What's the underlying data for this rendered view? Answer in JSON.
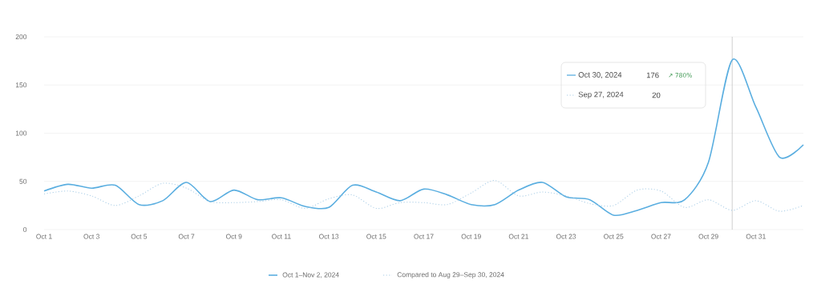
{
  "chart_data": {
    "type": "line",
    "x": [
      "2024-10-01",
      "2024-10-02",
      "2024-10-03",
      "2024-10-04",
      "2024-10-05",
      "2024-10-06",
      "2024-10-07",
      "2024-10-08",
      "2024-10-09",
      "2024-10-10",
      "2024-10-11",
      "2024-10-12",
      "2024-10-13",
      "2024-10-14",
      "2024-10-15",
      "2024-10-16",
      "2024-10-17",
      "2024-10-18",
      "2024-10-19",
      "2024-10-20",
      "2024-10-21",
      "2024-10-22",
      "2024-10-23",
      "2024-10-24",
      "2024-10-25",
      "2024-10-26",
      "2024-10-27",
      "2024-10-28",
      "2024-10-29",
      "2024-10-30",
      "2024-10-31",
      "2024-11-01",
      "2024-11-02"
    ],
    "series": [
      {
        "name": "Oct 1–Nov 2, 2024",
        "color": "#5aaee0",
        "line_style": "solid",
        "values": [
          40,
          47,
          43,
          46,
          26,
          30,
          49,
          29,
          41,
          31,
          33,
          24,
          23,
          46,
          39,
          30,
          42,
          36,
          26,
          26,
          41,
          49,
          34,
          31,
          15,
          20,
          28,
          31,
          70,
          176,
          127,
          75,
          88
        ]
      },
      {
        "name": "Compared to Aug 29–Sep 30, 2024",
        "color": "#a9cde6",
        "line_style": "dotted",
        "values": [
          37,
          40,
          35,
          25,
          35,
          48,
          43,
          29,
          28,
          29,
          31,
          22,
          32,
          36,
          22,
          28,
          28,
          26,
          38,
          51,
          35,
          39,
          35,
          27,
          25,
          41,
          40,
          23,
          31,
          20,
          30,
          19,
          25
        ]
      }
    ],
    "xlim": [
      "2024-10-01",
      "2024-11-02"
    ],
    "xticks": [
      {
        "value": "2024-10-01",
        "label": "Oct 1"
      },
      {
        "value": "2024-10-03",
        "label": "Oct 3"
      },
      {
        "value": "2024-10-05",
        "label": "Oct 5"
      },
      {
        "value": "2024-10-07",
        "label": "Oct 7"
      },
      {
        "value": "2024-10-09",
        "label": "Oct 9"
      },
      {
        "value": "2024-10-11",
        "label": "Oct 11"
      },
      {
        "value": "2024-10-13",
        "label": "Oct 13"
      },
      {
        "value": "2024-10-15",
        "label": "Oct 15"
      },
      {
        "value": "2024-10-17",
        "label": "Oct 17"
      },
      {
        "value": "2024-10-19",
        "label": "Oct 19"
      },
      {
        "value": "2024-10-21",
        "label": "Oct 21"
      },
      {
        "value": "2024-10-23",
        "label": "Oct 23"
      },
      {
        "value": "2024-10-25",
        "label": "Oct 25"
      },
      {
        "value": "2024-10-27",
        "label": "Oct 27"
      },
      {
        "value": "2024-10-29",
        "label": "Oct 29"
      },
      {
        "value": "2024-10-31",
        "label": "Oct 31"
      }
    ],
    "ylim": [
      0,
      200
    ],
    "yticks": [
      0,
      50,
      100,
      150,
      200
    ],
    "grid": "y",
    "legend": "bottom",
    "ref_lines": [
      {
        "axis": "x",
        "value": "2024-10-30",
        "color": "#b0b0b0"
      }
    ],
    "annotations": [
      "Oct 30, 2024",
      "176",
      "↗ 780%",
      "Sep 27, 2024",
      "20"
    ]
  }
}
